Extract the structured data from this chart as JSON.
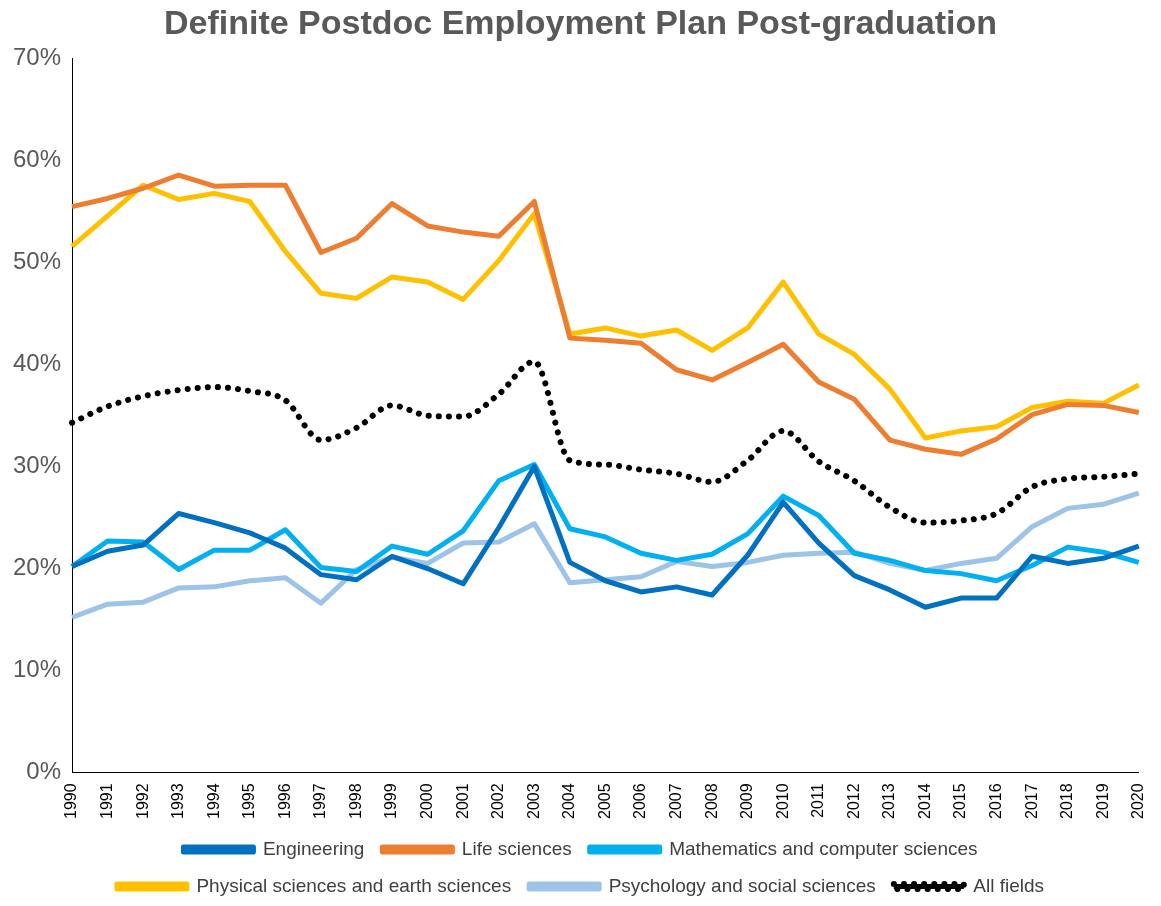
{
  "chart_data": {
    "type": "line",
    "title": "Definite Postdoc Employment Plan Post-graduation",
    "categories": [
      "1990",
      "1991",
      "1992",
      "1993",
      "1994",
      "1995",
      "1996",
      "1997",
      "1998",
      "1999",
      "2000",
      "2001",
      "2002",
      "2003",
      "2004",
      "2005",
      "2006",
      "2007",
      "2008",
      "2009",
      "2010",
      "2011",
      "2012",
      "2013",
      "2014",
      "2015",
      "2016",
      "2017",
      "2018",
      "2019",
      "2020"
    ],
    "series": [
      {
        "name": "Engineering",
        "color": "#0070c0",
        "values": [
          20.2,
          21.7,
          22.3,
          25.4,
          24.5,
          23.5,
          22.0,
          19.4,
          18.9,
          21.2,
          20.0,
          18.5,
          24.0,
          30.0,
          20.6,
          18.8,
          17.7,
          18.2,
          17.4,
          21.3,
          26.5,
          22.5,
          19.3,
          17.9,
          16.2,
          17.1,
          17.1,
          21.2,
          20.5,
          21.0,
          22.2
        ]
      },
      {
        "name": "Life sciences",
        "color": "#ed7d31",
        "values": [
          55.5,
          56.3,
          57.3,
          58.6,
          57.5,
          57.6,
          57.6,
          51.0,
          52.4,
          55.8,
          53.6,
          53.0,
          52.6,
          56.0,
          42.6,
          42.4,
          42.1,
          39.5,
          38.5,
          40.2,
          42.0,
          38.3,
          36.6,
          32.6,
          31.7,
          31.2,
          32.7,
          35.1,
          36.1,
          36.0,
          35.3
        ]
      },
      {
        "name": "Mathematics and computer sciences",
        "color": "#00b0f0",
        "values": [
          20.2,
          22.7,
          22.6,
          19.9,
          21.8,
          21.8,
          23.8,
          20.1,
          19.7,
          22.2,
          21.4,
          23.7,
          28.6,
          30.2,
          23.9,
          23.1,
          21.5,
          20.8,
          21.4,
          23.4,
          27.1,
          25.2,
          21.5,
          20.8,
          19.8,
          19.5,
          18.8,
          20.3,
          22.1,
          21.6,
          20.6
        ]
      },
      {
        "name": "Physical sciences and earth sciences",
        "color": "#ffc000",
        "values": [
          51.6,
          54.6,
          57.6,
          56.2,
          56.8,
          56.0,
          51.1,
          47.0,
          46.5,
          48.6,
          48.1,
          46.4,
          50.2,
          54.8,
          43.0,
          43.6,
          42.8,
          43.4,
          41.4,
          43.6,
          48.1,
          43.0,
          41.0,
          37.6,
          32.8,
          33.5,
          33.9,
          35.8,
          36.4,
          36.2,
          38.0
        ]
      },
      {
        "name": "Psychology and social sciences",
        "color": "#9dc3e6",
        "values": [
          15.2,
          16.5,
          16.7,
          18.1,
          18.2,
          18.8,
          19.1,
          16.6,
          19.9,
          21.1,
          20.5,
          22.5,
          22.6,
          24.4,
          18.6,
          18.9,
          19.2,
          20.7,
          20.2,
          20.6,
          21.3,
          21.5,
          21.6,
          20.5,
          19.8,
          20.5,
          21.0,
          24.1,
          25.9,
          26.3,
          27.4
        ]
      },
      {
        "name": "All fields",
        "color": "#000000",
        "line_style": "dotted",
        "values": [
          34.3,
          35.9,
          36.9,
          37.5,
          37.8,
          37.4,
          36.5,
          32.6,
          33.8,
          36.0,
          35.0,
          34.9,
          37.1,
          40.3,
          30.6,
          30.2,
          29.7,
          29.3,
          28.5,
          30.6,
          33.5,
          30.5,
          28.6,
          26.0,
          24.5,
          24.7,
          25.4,
          28.0,
          28.8,
          29.0,
          29.3
        ]
      }
    ],
    "ylim": [
      0,
      70
    ],
    "yticks": [
      {
        "value": 0,
        "label": "0%"
      },
      {
        "value": 10,
        "label": "10%"
      },
      {
        "value": 20,
        "label": "20%"
      },
      {
        "value": 30,
        "label": "30%"
      },
      {
        "value": 40,
        "label": "40%"
      },
      {
        "value": 50,
        "label": "50%"
      },
      {
        "value": 60,
        "label": "60%"
      },
      {
        "value": 70,
        "label": "70%"
      }
    ],
    "grid": false,
    "legend": "bottom",
    "marker": "none"
  }
}
